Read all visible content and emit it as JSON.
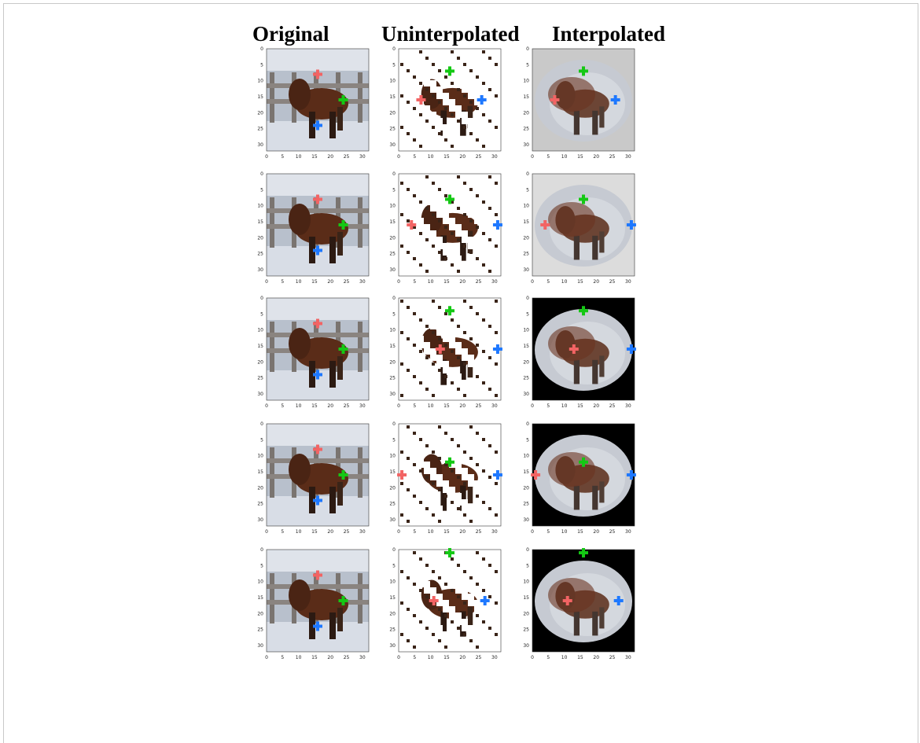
{
  "figure": {
    "column_titles": [
      "Original",
      "Uninterpolated",
      "Interpolated"
    ],
    "tick_labels_x": [
      "0",
      "5",
      "10",
      "15",
      "20",
      "25",
      "30"
    ],
    "tick_labels_y": [
      "0",
      "5",
      "10",
      "15",
      "20",
      "25",
      "30"
    ],
    "marker_colors": {
      "red": "#f26464",
      "green": "#14c814",
      "blue": "#1e78ff"
    },
    "rows": [
      {
        "name": "row-1",
        "interp_fill": "#c9c9c9"
      },
      {
        "name": "row-2",
        "interp_fill": "#dcdcdc"
      },
      {
        "name": "row-3",
        "interp_fill": "#000000"
      },
      {
        "name": "row-4",
        "interp_fill": "#000000"
      },
      {
        "name": "row-5",
        "interp_fill": "#000000"
      }
    ]
  }
}
